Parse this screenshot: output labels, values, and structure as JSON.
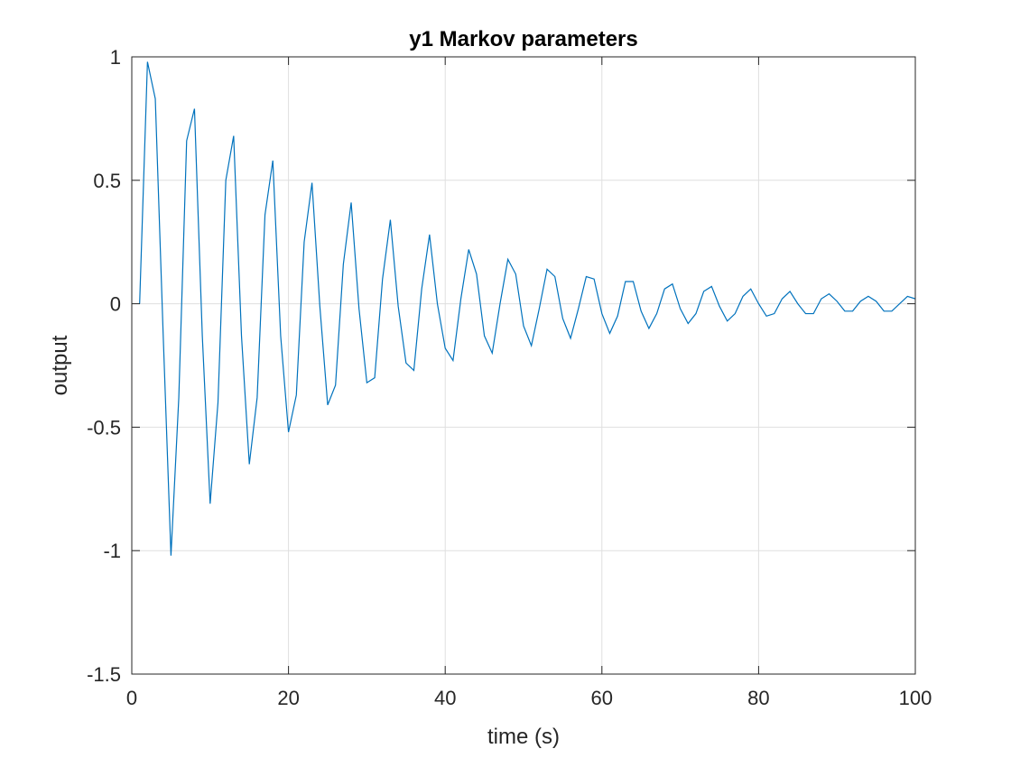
{
  "chart_data": {
    "type": "line",
    "title": "y1 Markov parameters",
    "xlabel": "time (s)",
    "ylabel": "output",
    "xlim": [
      0,
      100
    ],
    "ylim": [
      -1.5,
      1
    ],
    "xticks": [
      0,
      20,
      40,
      60,
      80,
      100
    ],
    "yticks": [
      -1.5,
      -1,
      -0.5,
      0,
      0.5,
      1
    ],
    "xtick_labels": [
      "0",
      "20",
      "40",
      "60",
      "80",
      "100"
    ],
    "ytick_labels": [
      "-1.5",
      "-1",
      "-0.5",
      "0",
      "0.5",
      "1"
    ],
    "grid": true,
    "line_color": "#0072BD",
    "series": [
      {
        "x": [
          1,
          2,
          3,
          4,
          5,
          6,
          7,
          8,
          9,
          10,
          11,
          12,
          13,
          14,
          15,
          16,
          17,
          18,
          19,
          20,
          21,
          22,
          23,
          24,
          25,
          26,
          27,
          28,
          29,
          30,
          31,
          32,
          33,
          34,
          35,
          36,
          37,
          38,
          39,
          40,
          41,
          42,
          43,
          44,
          45,
          46,
          47,
          48,
          49,
          50,
          51,
          52,
          53,
          54,
          55,
          56,
          57,
          58,
          59,
          60,
          61,
          62,
          63,
          64,
          65,
          66,
          67,
          68,
          69,
          70,
          71,
          72,
          73,
          74,
          75,
          76,
          77,
          78,
          79,
          80,
          81,
          82,
          83,
          84,
          85,
          86,
          87,
          88,
          89,
          90,
          91,
          92,
          93,
          94,
          95,
          96,
          97,
          98,
          99,
          100
        ],
        "values": [
          0,
          0.98,
          0.83,
          -0.12,
          -1.02,
          -0.38,
          0.66,
          0.79,
          -0.13,
          -0.81,
          -0.4,
          0.5,
          0.68,
          -0.13,
          -0.65,
          -0.38,
          0.36,
          0.58,
          -0.13,
          -0.52,
          -0.37,
          0.25,
          0.49,
          -0.01,
          -0.41,
          -0.33,
          0.16,
          0.41,
          -0.02,
          -0.32,
          -0.3,
          0.1,
          0.34,
          -0.01,
          -0.24,
          -0.27,
          0.06,
          0.28,
          0.0,
          -0.18,
          -0.23,
          0.02,
          0.22,
          0.12,
          -0.13,
          -0.2,
          0.0,
          0.18,
          0.12,
          -0.09,
          -0.17,
          -0.02,
          0.14,
          0.11,
          -0.06,
          -0.14,
          -0.02,
          0.11,
          0.1,
          -0.04,
          -0.12,
          -0.05,
          0.09,
          0.09,
          -0.03,
          -0.1,
          -0.04,
          0.06,
          0.08,
          -0.02,
          -0.08,
          -0.04,
          0.05,
          0.07,
          -0.01,
          -0.07,
          -0.04,
          0.03,
          0.06,
          0.0,
          -0.05,
          -0.04,
          0.02,
          0.05,
          0.0,
          -0.04,
          -0.04,
          0.02,
          0.04,
          0.01,
          -0.03,
          -0.03,
          0.01,
          0.03,
          0.01,
          -0.03,
          -0.03,
          0.0,
          0.03,
          0.02
        ]
      }
    ]
  }
}
